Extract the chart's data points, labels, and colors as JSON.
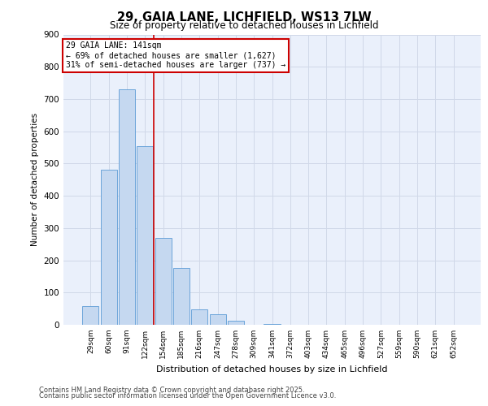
{
  "title": "29, GAIA LANE, LICHFIELD, WS13 7LW",
  "subtitle": "Size of property relative to detached houses in Lichfield",
  "xlabel": "Distribution of detached houses by size in Lichfield",
  "ylabel": "Number of detached properties",
  "bar_labels": [
    "29sqm",
    "60sqm",
    "91sqm",
    "122sqm",
    "154sqm",
    "185sqm",
    "216sqm",
    "247sqm",
    "278sqm",
    "309sqm",
    "341sqm",
    "372sqm",
    "403sqm",
    "434sqm",
    "465sqm",
    "496sqm",
    "527sqm",
    "559sqm",
    "590sqm",
    "621sqm",
    "652sqm"
  ],
  "bar_values": [
    57,
    480,
    730,
    553,
    270,
    175,
    48,
    32,
    13,
    0,
    3,
    0,
    0,
    0,
    0,
    0,
    0,
    0,
    0,
    0,
    0
  ],
  "bar_color": "#c5d8f0",
  "bar_edge_color": "#5b9bd5",
  "property_line_color": "#cc0000",
  "ylim": [
    0,
    900
  ],
  "yticks": [
    0,
    100,
    200,
    300,
    400,
    500,
    600,
    700,
    800,
    900
  ],
  "annotation_title": "29 GAIA LANE: 141sqm",
  "annotation_line1": "← 69% of detached houses are smaller (1,627)",
  "annotation_line2": "31% of semi-detached houses are larger (737) →",
  "annotation_box_color": "#cc0000",
  "grid_color": "#d0d8e8",
  "bg_color": "#eaf0fb",
  "footer1": "Contains HM Land Registry data © Crown copyright and database right 2025.",
  "footer2": "Contains public sector information licensed under the Open Government Licence v3.0."
}
